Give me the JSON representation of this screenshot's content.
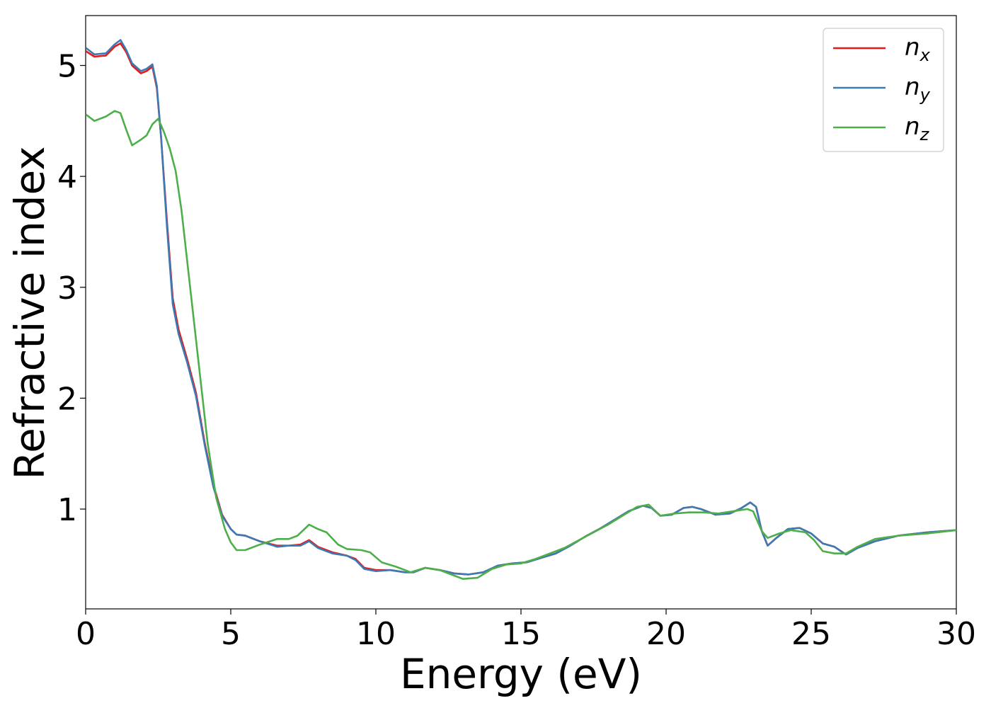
{
  "chart_data": {
    "type": "line",
    "title": "",
    "xlabel": "Energy (eV)",
    "ylabel": "Refractive index",
    "xlim": [
      0,
      30
    ],
    "ylim": [
      0.1,
      5.45
    ],
    "xticks": [
      0,
      5,
      10,
      15,
      20,
      25,
      30
    ],
    "yticks": [
      1,
      2,
      3,
      4,
      5
    ],
    "grid": false,
    "legend_position": "top-right",
    "series": [
      {
        "name": "n",
        "subscript": "x",
        "color": "#e41a1c",
        "points": [
          [
            0,
            5.13
          ],
          [
            0.3,
            5.08
          ],
          [
            0.7,
            5.09
          ],
          [
            1.0,
            5.17
          ],
          [
            1.2,
            5.2
          ],
          [
            1.4,
            5.12
          ],
          [
            1.6,
            5.0
          ],
          [
            1.9,
            4.93
          ],
          [
            2.1,
            4.95
          ],
          [
            2.3,
            4.99
          ],
          [
            2.45,
            4.8
          ],
          [
            2.6,
            4.35
          ],
          [
            2.8,
            3.6
          ],
          [
            3.0,
            2.9
          ],
          [
            3.2,
            2.62
          ],
          [
            3.5,
            2.35
          ],
          [
            3.8,
            2.05
          ],
          [
            4.1,
            1.6
          ],
          [
            4.4,
            1.22
          ],
          [
            4.7,
            0.95
          ],
          [
            5.0,
            0.82
          ],
          [
            5.2,
            0.77
          ],
          [
            5.5,
            0.76
          ],
          [
            6.0,
            0.71
          ],
          [
            6.6,
            0.67
          ],
          [
            7.0,
            0.67
          ],
          [
            7.4,
            0.68
          ],
          [
            7.7,
            0.72
          ],
          [
            8.0,
            0.66
          ],
          [
            8.5,
            0.61
          ],
          [
            9.0,
            0.58
          ],
          [
            9.3,
            0.55
          ],
          [
            9.6,
            0.47
          ],
          [
            10.0,
            0.45
          ],
          [
            10.5,
            0.45
          ],
          [
            11.0,
            0.43
          ],
          [
            11.3,
            0.43
          ],
          [
            11.7,
            0.47
          ],
          [
            12.2,
            0.45
          ],
          [
            12.7,
            0.42
          ],
          [
            13.2,
            0.41
          ],
          [
            13.7,
            0.43
          ],
          [
            14.2,
            0.49
          ],
          [
            14.7,
            0.51
          ],
          [
            15.2,
            0.52
          ],
          [
            15.7,
            0.56
          ],
          [
            16.2,
            0.6
          ],
          [
            16.7,
            0.67
          ],
          [
            17.2,
            0.75
          ],
          [
            17.7,
            0.82
          ],
          [
            18.2,
            0.9
          ],
          [
            18.7,
            0.98
          ],
          [
            19.2,
            1.03
          ],
          [
            19.5,
            1.01
          ],
          [
            19.8,
            0.94
          ],
          [
            20.2,
            0.95
          ],
          [
            20.6,
            1.01
          ],
          [
            20.9,
            1.02
          ],
          [
            21.2,
            1.0
          ],
          [
            21.7,
            0.95
          ],
          [
            22.2,
            0.96
          ],
          [
            22.6,
            1.01
          ],
          [
            22.9,
            1.06
          ],
          [
            23.1,
            1.02
          ],
          [
            23.3,
            0.8
          ],
          [
            23.5,
            0.67
          ],
          [
            23.8,
            0.74
          ],
          [
            24.2,
            0.82
          ],
          [
            24.6,
            0.83
          ],
          [
            25.0,
            0.78
          ],
          [
            25.4,
            0.69
          ],
          [
            25.8,
            0.66
          ],
          [
            26.2,
            0.59
          ],
          [
            26.6,
            0.65
          ],
          [
            27.2,
            0.71
          ],
          [
            28.0,
            0.76
          ],
          [
            29.0,
            0.79
          ],
          [
            30.0,
            0.81
          ]
        ]
      },
      {
        "name": "n",
        "subscript": "y",
        "color": "#3d7ab3",
        "points": [
          [
            0,
            5.16
          ],
          [
            0.3,
            5.1
          ],
          [
            0.7,
            5.11
          ],
          [
            1.0,
            5.19
          ],
          [
            1.2,
            5.23
          ],
          [
            1.4,
            5.14
          ],
          [
            1.6,
            5.02
          ],
          [
            1.9,
            4.95
          ],
          [
            2.1,
            4.97
          ],
          [
            2.3,
            5.01
          ],
          [
            2.45,
            4.82
          ],
          [
            2.6,
            4.35
          ],
          [
            2.8,
            3.55
          ],
          [
            3.0,
            2.85
          ],
          [
            3.2,
            2.58
          ],
          [
            3.5,
            2.32
          ],
          [
            3.8,
            2.02
          ],
          [
            4.1,
            1.58
          ],
          [
            4.4,
            1.2
          ],
          [
            4.7,
            0.94
          ],
          [
            5.0,
            0.82
          ],
          [
            5.2,
            0.77
          ],
          [
            5.5,
            0.76
          ],
          [
            6.0,
            0.71
          ],
          [
            6.6,
            0.66
          ],
          [
            7.0,
            0.67
          ],
          [
            7.4,
            0.67
          ],
          [
            7.7,
            0.71
          ],
          [
            8.0,
            0.65
          ],
          [
            8.5,
            0.6
          ],
          [
            9.0,
            0.58
          ],
          [
            9.3,
            0.54
          ],
          [
            9.6,
            0.46
          ],
          [
            10.0,
            0.44
          ],
          [
            10.5,
            0.45
          ],
          [
            11.0,
            0.43
          ],
          [
            11.3,
            0.43
          ],
          [
            11.7,
            0.47
          ],
          [
            12.2,
            0.45
          ],
          [
            12.7,
            0.42
          ],
          [
            13.2,
            0.41
          ],
          [
            13.7,
            0.43
          ],
          [
            14.2,
            0.49
          ],
          [
            14.7,
            0.51
          ],
          [
            15.2,
            0.52
          ],
          [
            15.7,
            0.56
          ],
          [
            16.2,
            0.6
          ],
          [
            16.7,
            0.67
          ],
          [
            17.2,
            0.75
          ],
          [
            17.7,
            0.82
          ],
          [
            18.2,
            0.9
          ],
          [
            18.7,
            0.98
          ],
          [
            19.2,
            1.03
          ],
          [
            19.5,
            1.01
          ],
          [
            19.8,
            0.94
          ],
          [
            20.2,
            0.95
          ],
          [
            20.6,
            1.01
          ],
          [
            20.9,
            1.02
          ],
          [
            21.2,
            1.0
          ],
          [
            21.7,
            0.95
          ],
          [
            22.2,
            0.96
          ],
          [
            22.6,
            1.01
          ],
          [
            22.9,
            1.06
          ],
          [
            23.1,
            1.02
          ],
          [
            23.3,
            0.8
          ],
          [
            23.5,
            0.67
          ],
          [
            23.8,
            0.74
          ],
          [
            24.2,
            0.82
          ],
          [
            24.6,
            0.83
          ],
          [
            25.0,
            0.78
          ],
          [
            25.4,
            0.69
          ],
          [
            25.8,
            0.66
          ],
          [
            26.2,
            0.59
          ],
          [
            26.6,
            0.65
          ],
          [
            27.2,
            0.71
          ],
          [
            28.0,
            0.76
          ],
          [
            29.0,
            0.79
          ],
          [
            30.0,
            0.81
          ]
        ]
      },
      {
        "name": "n",
        "subscript": "z",
        "color": "#4daf4a",
        "points": [
          [
            0,
            4.56
          ],
          [
            0.3,
            4.5
          ],
          [
            0.7,
            4.54
          ],
          [
            1.0,
            4.59
          ],
          [
            1.2,
            4.57
          ],
          [
            1.4,
            4.42
          ],
          [
            1.6,
            4.28
          ],
          [
            1.9,
            4.33
          ],
          [
            2.1,
            4.37
          ],
          [
            2.3,
            4.47
          ],
          [
            2.5,
            4.52
          ],
          [
            2.7,
            4.4
          ],
          [
            2.9,
            4.25
          ],
          [
            3.1,
            4.05
          ],
          [
            3.3,
            3.7
          ],
          [
            3.6,
            3.0
          ],
          [
            3.9,
            2.3
          ],
          [
            4.2,
            1.6
          ],
          [
            4.5,
            1.1
          ],
          [
            4.8,
            0.82
          ],
          [
            5.0,
            0.7
          ],
          [
            5.2,
            0.63
          ],
          [
            5.5,
            0.63
          ],
          [
            6.0,
            0.68
          ],
          [
            6.6,
            0.73
          ],
          [
            7.0,
            0.73
          ],
          [
            7.3,
            0.76
          ],
          [
            7.7,
            0.86
          ],
          [
            8.0,
            0.82
          ],
          [
            8.3,
            0.79
          ],
          [
            8.7,
            0.68
          ],
          [
            9.0,
            0.64
          ],
          [
            9.5,
            0.63
          ],
          [
            9.8,
            0.61
          ],
          [
            10.2,
            0.52
          ],
          [
            10.7,
            0.48
          ],
          [
            11.2,
            0.43
          ],
          [
            11.7,
            0.47
          ],
          [
            12.2,
            0.45
          ],
          [
            12.7,
            0.4
          ],
          [
            13.0,
            0.37
          ],
          [
            13.5,
            0.38
          ],
          [
            14.0,
            0.46
          ],
          [
            14.5,
            0.5
          ],
          [
            15.0,
            0.51
          ],
          [
            15.5,
            0.55
          ],
          [
            16.0,
            0.6
          ],
          [
            16.5,
            0.65
          ],
          [
            17.0,
            0.72
          ],
          [
            17.5,
            0.79
          ],
          [
            18.0,
            0.86
          ],
          [
            18.5,
            0.94
          ],
          [
            19.0,
            1.02
          ],
          [
            19.4,
            1.04
          ],
          [
            19.8,
            0.94
          ],
          [
            20.3,
            0.96
          ],
          [
            20.8,
            0.97
          ],
          [
            21.3,
            0.97
          ],
          [
            21.8,
            0.96
          ],
          [
            22.3,
            0.98
          ],
          [
            22.8,
            1.0
          ],
          [
            23.0,
            0.98
          ],
          [
            23.3,
            0.8
          ],
          [
            23.5,
            0.74
          ],
          [
            23.9,
            0.78
          ],
          [
            24.3,
            0.81
          ],
          [
            24.8,
            0.79
          ],
          [
            25.1,
            0.72
          ],
          [
            25.4,
            0.62
          ],
          [
            25.8,
            0.6
          ],
          [
            26.2,
            0.6
          ],
          [
            26.6,
            0.66
          ],
          [
            27.2,
            0.73
          ],
          [
            28.0,
            0.76
          ],
          [
            29.0,
            0.78
          ],
          [
            30.0,
            0.81
          ]
        ]
      }
    ]
  }
}
